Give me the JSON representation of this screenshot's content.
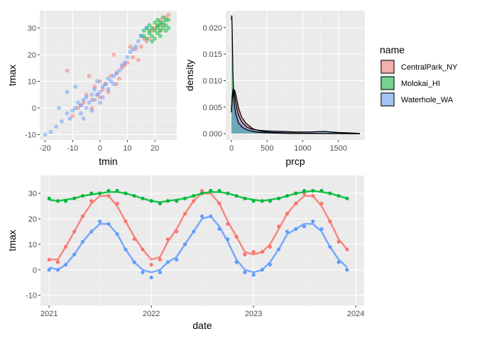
{
  "colors": {
    "panel_bg": "#ebebeb",
    "grid_major": "#ffffff",
    "grid_minor": "#f5f5f5",
    "tick_text": "#4d4d4d",
    "CentralPark_NY": "#F8766D",
    "Molokai_HI": "#00BA38",
    "Waterhole_WA": "#619CFF"
  },
  "legend": {
    "title": "name",
    "position": "right",
    "items": [
      {
        "label": "CentralPark_NY",
        "color": "#F8766D"
      },
      {
        "label": "Molokai_HI",
        "color": "#00BA38"
      },
      {
        "label": "Waterhole_WA",
        "color": "#619CFF"
      }
    ]
  },
  "chart_data": [
    {
      "id": "tmin_tmax",
      "type": "scatter",
      "xlabel": "tmin",
      "ylabel": "tmax",
      "xlim": [
        -22,
        28
      ],
      "ylim": [
        -12,
        36.5
      ],
      "xticks": [
        -20,
        -10,
        0,
        10,
        20
      ],
      "yticks": [
        -10,
        0,
        10,
        20,
        30
      ],
      "xtick_labels": [
        "-20",
        "-10",
        "0",
        "10",
        "20"
      ],
      "ytick_labels": [
        "-10",
        "0",
        "10",
        "20",
        "30"
      ],
      "grid": true,
      "point_alpha": 0.5,
      "series": [
        {
          "name": "CentralPark_NY",
          "color": "#F8766D",
          "points": [
            [
              -10,
              -3
            ],
            [
              -8,
              0
            ],
            [
              -6,
              2
            ],
            [
              -5,
              5
            ],
            [
              -3,
              3
            ],
            [
              -2,
              8
            ],
            [
              0,
              4
            ],
            [
              0,
              10
            ],
            [
              2,
              9
            ],
            [
              3,
              6
            ],
            [
              4,
              12
            ],
            [
              6,
              13
            ],
            [
              8,
              15
            ],
            [
              10,
              17
            ],
            [
              12,
              19
            ],
            [
              13,
              22
            ],
            [
              15,
              23
            ],
            [
              16,
              26
            ],
            [
              18,
              26
            ],
            [
              19,
              29
            ],
            [
              20,
              30
            ],
            [
              21,
              31
            ],
            [
              22,
              33
            ],
            [
              23,
              31
            ],
            [
              24,
              34
            ],
            [
              25,
              35
            ],
            [
              -12,
              14
            ],
            [
              -4,
              12
            ],
            [
              5,
              20
            ],
            [
              11,
              23
            ],
            [
              -3,
              0
            ],
            [
              7,
              11
            ],
            [
              14,
              18
            ],
            [
              17,
              25
            ],
            [
              9,
              16
            ],
            [
              1,
              7
            ],
            [
              -7,
              1
            ],
            [
              -1,
              5
            ],
            [
              6,
              9
            ],
            [
              22,
              29
            ]
          ]
        },
        {
          "name": "Molokai_HI",
          "color": "#00BA38",
          "points": [
            [
              15,
              27
            ],
            [
              16,
              29
            ],
            [
              17,
              26
            ],
            [
              17,
              30
            ],
            [
              18,
              28
            ],
            [
              18,
              31
            ],
            [
              19,
              27
            ],
            [
              19,
              30
            ],
            [
              20,
              29
            ],
            [
              20,
              32
            ],
            [
              21,
              28
            ],
            [
              21,
              30
            ],
            [
              21,
              33
            ],
            [
              22,
              29
            ],
            [
              22,
              31
            ],
            [
              23,
              30
            ],
            [
              23,
              32
            ],
            [
              24,
              29
            ],
            [
              24,
              31
            ],
            [
              25,
              33
            ],
            [
              25,
              30
            ],
            [
              20,
              26
            ],
            [
              19,
              25
            ],
            [
              22,
              27
            ],
            [
              23,
              34
            ],
            [
              18,
              29
            ],
            [
              16,
              27
            ],
            [
              21,
              31
            ],
            [
              24,
              33
            ],
            [
              22,
              32
            ]
          ]
        },
        {
          "name": "Waterhole_WA",
          "color": "#619CFF",
          "points": [
            [
              -20,
              -10
            ],
            [
              -18,
              -9
            ],
            [
              -16,
              -7
            ],
            [
              -14,
              -5
            ],
            [
              -12,
              -2
            ],
            [
              -11,
              -4
            ],
            [
              -10,
              -1
            ],
            [
              -9,
              0
            ],
            [
              -8,
              2
            ],
            [
              -7,
              -2
            ],
            [
              -7,
              1
            ],
            [
              -6,
              3
            ],
            [
              -5,
              0
            ],
            [
              -5,
              4
            ],
            [
              -4,
              2
            ],
            [
              -3,
              5
            ],
            [
              -2,
              3
            ],
            [
              -2,
              7
            ],
            [
              -1,
              5
            ],
            [
              0,
              6
            ],
            [
              0,
              2
            ],
            [
              1,
              8
            ],
            [
              1,
              4
            ],
            [
              2,
              9
            ],
            [
              3,
              7
            ],
            [
              3,
              11
            ],
            [
              4,
              10
            ],
            [
              5,
              12
            ],
            [
              5,
              9
            ],
            [
              6,
              13
            ],
            [
              7,
              14
            ],
            [
              8,
              16
            ],
            [
              9,
              17
            ],
            [
              10,
              19
            ],
            [
              11,
              21
            ],
            [
              12,
              22
            ],
            [
              13,
              23
            ],
            [
              14,
              25
            ],
            [
              15,
              27
            ],
            [
              17,
              30
            ],
            [
              -15,
              0
            ],
            [
              -12,
              6
            ],
            [
              -9,
              8
            ],
            [
              -6,
              -4
            ],
            [
              -3,
              -1
            ],
            [
              -1,
              10
            ]
          ]
        }
      ]
    },
    {
      "id": "prcp_density",
      "type": "area",
      "xlabel": "prcp",
      "ylabel": "density",
      "xlim": [
        -80,
        1870
      ],
      "ylim": [
        -0.0012,
        0.0232
      ],
      "xticks": [
        0,
        500,
        1000,
        1500
      ],
      "yticks": [
        0,
        0.005,
        0.01,
        0.015,
        0.02
      ],
      "xtick_labels": [
        "0",
        "500",
        "1000",
        "1500"
      ],
      "ytick_labels": [
        "0.000",
        "0.005",
        "0.010",
        "0.015",
        "0.020"
      ],
      "grid": true,
      "fill_alpha": 0.5,
      "series": [
        {
          "name": "CentralPark_NY",
          "color": "#F8766D",
          "x": [
            0,
            10,
            20,
            35,
            50,
            70,
            100,
            140,
            200,
            300,
            400,
            500,
            600,
            800,
            1000,
            1200,
            1400,
            1600,
            1800
          ],
          "y": [
            0.0045,
            0.0062,
            0.0075,
            0.0083,
            0.008,
            0.0068,
            0.0048,
            0.0032,
            0.002,
            0.0009,
            0.0005,
            0.0003,
            0.0002,
            0.0001,
            5e-05,
            3e-05,
            2e-05,
            1e-05,
            0.0
          ]
        },
        {
          "name": "Molokai_HI",
          "color": "#00BA38",
          "x": [
            0,
            5,
            10,
            15,
            20,
            30,
            45,
            60,
            80,
            100,
            150,
            200,
            300,
            400,
            600,
            800,
            1000,
            1400,
            1800
          ],
          "y": [
            0.0215,
            0.0223,
            0.02,
            0.016,
            0.012,
            0.0075,
            0.005,
            0.0038,
            0.0028,
            0.002,
            0.0012,
            0.0008,
            0.0004,
            0.0002,
            0.0001,
            5e-05,
            2e-05,
            1e-05,
            0.0
          ]
        },
        {
          "name": "Waterhole_WA",
          "color": "#619CFF",
          "x": [
            0,
            10,
            25,
            40,
            60,
            80,
            100,
            130,
            170,
            220,
            300,
            400,
            500,
            700,
            900,
            1100,
            1300,
            1500,
            1700,
            1800
          ],
          "y": [
            0.004,
            0.007,
            0.0086,
            0.0078,
            0.006,
            0.0045,
            0.0035,
            0.0026,
            0.0018,
            0.0012,
            0.0008,
            0.0006,
            0.0005,
            0.0004,
            0.0003,
            0.0003,
            0.0004,
            0.0002,
            0.0001,
            0.0
          ]
        }
      ]
    },
    {
      "id": "date_tmax",
      "type": "scatter",
      "xlabel": "date",
      "ylabel": "tmax",
      "x_unit": "date",
      "xlim": [
        "2020-12-01",
        "2024-01-31"
      ],
      "ylim": [
        -14,
        37
      ],
      "xticks": [
        "2021-01-01",
        "2022-01-01",
        "2023-01-01",
        "2024-01-01"
      ],
      "yticks": [
        -10,
        0,
        10,
        20,
        30
      ],
      "xtick_labels": [
        "2021",
        "2022",
        "2023",
        "2024"
      ],
      "ytick_labels": [
        "-10",
        "0",
        "10",
        "20",
        "30"
      ],
      "grid": true,
      "smooth": true,
      "series": [
        {
          "name": "CentralPark_NY",
          "color": "#F8766D",
          "x": [
            "2021-01-01",
            "2021-02-01",
            "2021-03-01",
            "2021-04-01",
            "2021-05-01",
            "2021-06-01",
            "2021-07-01",
            "2021-08-01",
            "2021-09-01",
            "2021-10-01",
            "2021-11-01",
            "2021-12-01",
            "2022-01-01",
            "2022-02-01",
            "2022-03-01",
            "2022-04-01",
            "2022-05-01",
            "2022-06-01",
            "2022-07-01",
            "2022-08-01",
            "2022-09-01",
            "2022-10-01",
            "2022-11-01",
            "2022-12-01",
            "2023-01-01",
            "2023-02-01",
            "2023-03-01",
            "2023-04-01",
            "2023-05-01",
            "2023-06-01",
            "2023-07-01",
            "2023-08-01",
            "2023-09-01",
            "2023-10-01",
            "2023-11-01",
            "2023-12-01"
          ],
          "y": [
            4,
            3,
            9,
            15,
            21,
            27,
            30,
            29,
            26,
            19,
            12,
            8,
            2,
            4,
            12,
            15,
            22,
            27,
            31,
            31,
            26,
            18,
            13,
            6,
            7,
            7,
            9,
            17,
            22,
            26,
            30,
            29,
            26,
            19,
            11,
            8
          ],
          "smooth": [
            4,
            4,
            9,
            15,
            21,
            26,
            29,
            29,
            25,
            19,
            13,
            8,
            4,
            5,
            11,
            16,
            22,
            27,
            30,
            30,
            26,
            19,
            13,
            7,
            6,
            7,
            10,
            16,
            22,
            26,
            29,
            29,
            25,
            19,
            12,
            8
          ]
        },
        {
          "name": "Molokai_HI",
          "color": "#00BA38",
          "x": [
            "2021-01-01",
            "2021-02-01",
            "2021-03-01",
            "2021-04-01",
            "2021-05-01",
            "2021-06-01",
            "2021-07-01",
            "2021-08-01",
            "2021-09-01",
            "2021-10-01",
            "2021-11-01",
            "2021-12-01",
            "2022-01-01",
            "2022-02-01",
            "2022-03-01",
            "2022-04-01",
            "2022-05-01",
            "2022-06-01",
            "2022-07-01",
            "2022-08-01",
            "2022-09-01",
            "2022-10-01",
            "2022-11-01",
            "2022-12-01",
            "2023-01-01",
            "2023-02-01",
            "2023-03-01",
            "2023-04-01",
            "2023-05-01",
            "2023-06-01",
            "2023-07-01",
            "2023-08-01",
            "2023-09-01",
            "2023-10-01",
            "2023-11-01",
            "2023-12-01"
          ],
          "y": [
            28,
            27,
            27,
            28,
            29,
            30,
            30,
            31,
            31,
            30,
            29,
            28,
            27,
            26,
            27,
            27,
            28,
            29,
            30,
            31,
            31,
            30,
            29,
            28,
            27,
            27,
            27,
            28,
            29,
            30,
            31,
            31,
            31,
            30,
            29,
            28
          ],
          "smooth": [
            27.5,
            27,
            27.5,
            28,
            29,
            29.5,
            30,
            30.5,
            30.5,
            30,
            29,
            28,
            27,
            26.5,
            27,
            27.5,
            28,
            29,
            30,
            30.5,
            30.5,
            30,
            29,
            28,
            27.5,
            27,
            27.5,
            28,
            29,
            30,
            30.5,
            31,
            30.5,
            30,
            29,
            28
          ]
        },
        {
          "name": "Waterhole_WA",
          "color": "#619CFF",
          "x": [
            "2021-01-01",
            "2021-02-01",
            "2021-03-01",
            "2021-04-01",
            "2021-05-01",
            "2021-06-01",
            "2021-07-01",
            "2021-08-01",
            "2021-09-01",
            "2021-10-01",
            "2021-11-01",
            "2021-12-01",
            "2022-01-01",
            "2022-02-01",
            "2022-03-01",
            "2022-04-01",
            "2022-05-01",
            "2022-06-01",
            "2022-07-01",
            "2022-08-01",
            "2022-09-01",
            "2022-10-01",
            "2022-11-01",
            "2022-12-01",
            "2023-01-01",
            "2023-02-01",
            "2023-03-01",
            "2023-04-01",
            "2023-05-01",
            "2023-06-01",
            "2023-07-01",
            "2023-08-01",
            "2023-09-01",
            "2023-10-01",
            "2023-11-01",
            "2023-12-01"
          ],
          "y": [
            0,
            0,
            2,
            6,
            11,
            15,
            19,
            18,
            14,
            8,
            3,
            -1,
            -3,
            -1,
            3,
            4,
            10,
            15,
            21,
            21,
            16,
            12,
            3,
            -1,
            -2,
            0,
            2,
            8,
            15,
            16,
            17,
            19,
            16,
            9,
            3,
            0
          ],
          "smooth": [
            1,
            0,
            2,
            6,
            11,
            15,
            18,
            18,
            14,
            8,
            3,
            0,
            -1,
            0,
            3,
            5,
            10,
            15,
            20,
            21,
            17,
            11,
            4,
            0,
            -1,
            0,
            3,
            8,
            14,
            16,
            18,
            18,
            15,
            9,
            4,
            1
          ]
        }
      ]
    }
  ]
}
